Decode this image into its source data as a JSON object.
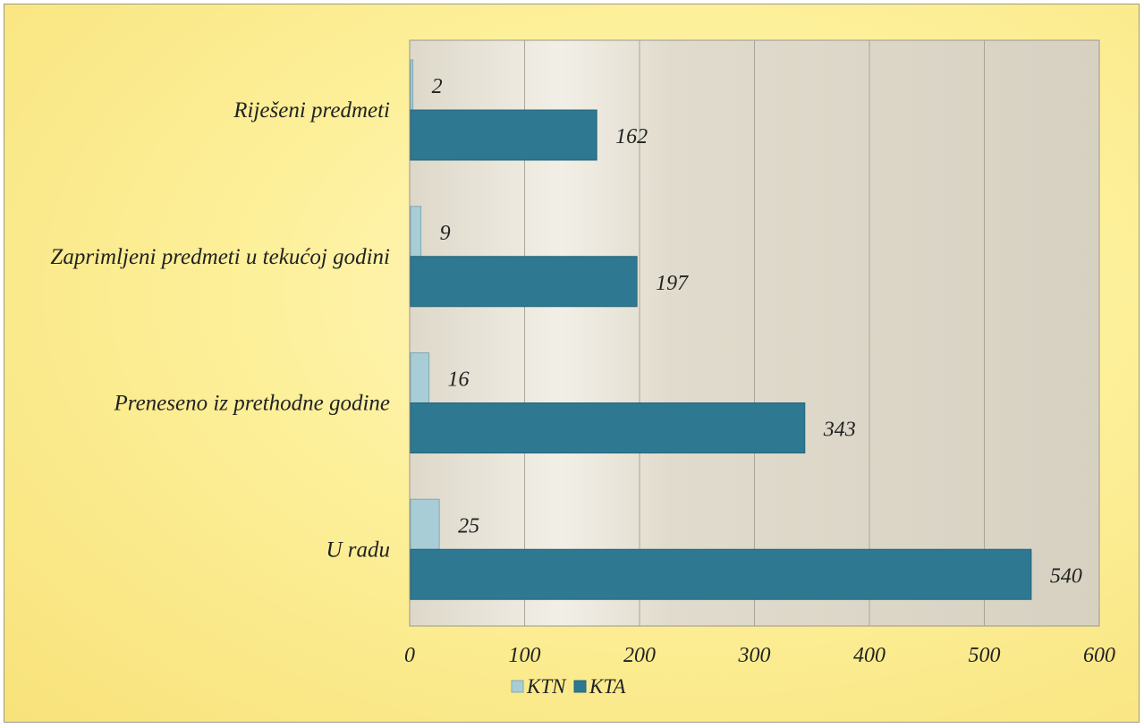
{
  "chart_data": {
    "type": "bar",
    "orientation": "horizontal",
    "title": "",
    "xlabel": "",
    "ylabel": "",
    "categories": [
      "Riješeni predmeti",
      "Zaprimljeni predmeti u tekućoj godini",
      "Preneseno iz prethodne godine",
      "U radu"
    ],
    "series": [
      {
        "name": "KTN",
        "values": [
          2,
          9,
          16,
          25
        ],
        "color": "#a9cdd6"
      },
      {
        "name": "KTA",
        "values": [
          162,
          197,
          343,
          540
        ],
        "color": "#2e7891"
      }
    ],
    "xlim": [
      0,
      600
    ],
    "xticks": [
      0,
      100,
      200,
      300,
      400,
      500,
      600
    ],
    "grid": true,
    "legend_position": "bottom"
  }
}
